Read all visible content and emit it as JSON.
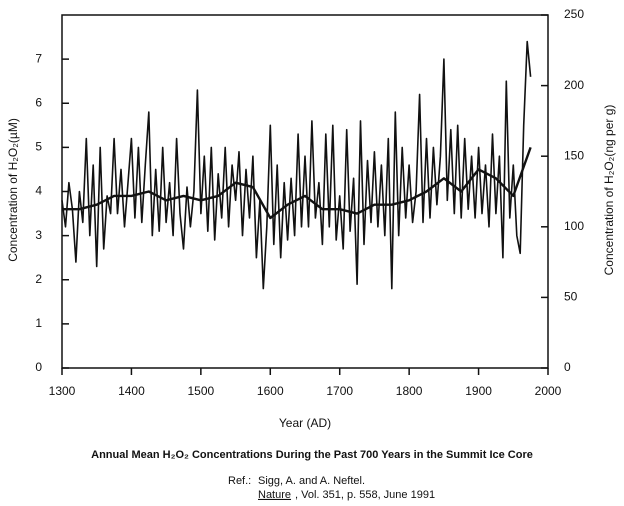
{
  "chart_data": {
    "type": "line",
    "title": "Annual Mean H₂O₂ Concentrations During the Past 700 Years in the Summit Ice Core",
    "ref_label": "Ref.:",
    "ref_line1": "Sigg, A. and A. Neftel.",
    "ref_journal": "Nature",
    "ref_line2": ", Vol. 351, p. 558, June 1991",
    "xlabel": "Year (AD)",
    "ylabel": "Concentration of H₂O₂(µM)",
    "y2label": "Concentration of H₂O₂(ng per g)",
    "xlim": [
      1300,
      2000
    ],
    "xticks": [
      1300,
      1400,
      1500,
      1600,
      1700,
      1800,
      1900,
      2000
    ],
    "ylim": [
      0,
      8
    ],
    "yticks": [
      0,
      1,
      2,
      3,
      4,
      5,
      6,
      7
    ],
    "y2lim": [
      0,
      250
    ],
    "y2ticks": [
      0,
      50,
      100,
      150,
      200,
      250
    ],
    "series": [
      {
        "color": "#111111",
        "width": 1.6,
        "x": [
          1300,
          1305,
          1310,
          1315,
          1320,
          1325,
          1330,
          1335,
          1340,
          1345,
          1350,
          1355,
          1360,
          1365,
          1370,
          1375,
          1380,
          1385,
          1390,
          1395,
          1400,
          1405,
          1410,
          1415,
          1420,
          1425,
          1430,
          1435,
          1440,
          1445,
          1450,
          1455,
          1460,
          1465,
          1470,
          1475,
          1480,
          1485,
          1490,
          1495,
          1500,
          1505,
          1510,
          1515,
          1520,
          1525,
          1530,
          1535,
          1540,
          1545,
          1550,
          1555,
          1560,
          1565,
          1570,
          1575,
          1580,
          1585,
          1590,
          1595,
          1600,
          1605,
          1610,
          1615,
          1620,
          1625,
          1630,
          1635,
          1640,
          1645,
          1650,
          1655,
          1660,
          1665,
          1670,
          1675,
          1680,
          1685,
          1690,
          1695,
          1700,
          1705,
          1710,
          1715,
          1720,
          1725,
          1730,
          1735,
          1740,
          1745,
          1750,
          1755,
          1760,
          1765,
          1770,
          1775,
          1780,
          1785,
          1790,
          1795,
          1800,
          1805,
          1810,
          1815,
          1820,
          1825,
          1830,
          1835,
          1840,
          1845,
          1850,
          1855,
          1860,
          1865,
          1870,
          1875,
          1880,
          1885,
          1890,
          1895,
          1900,
          1905,
          1910,
          1915,
          1920,
          1925,
          1930,
          1935,
          1940,
          1945,
          1950,
          1955,
          1960,
          1965,
          1970,
          1975
        ],
        "values": [
          3.8,
          3.2,
          4.2,
          3.6,
          2.4,
          4.0,
          3.3,
          5.2,
          3.0,
          4.6,
          2.3,
          5.0,
          2.7,
          3.9,
          3.5,
          5.2,
          3.5,
          4.5,
          3.2,
          4.2,
          5.2,
          3.4,
          5.0,
          3.3,
          4.6,
          5.8,
          3.0,
          4.5,
          3.1,
          5.0,
          3.3,
          4.2,
          3.0,
          5.2,
          3.5,
          2.7,
          4.1,
          3.2,
          4.0,
          6.3,
          3.5,
          4.8,
          3.1,
          5.0,
          2.9,
          4.4,
          3.4,
          5.0,
          3.2,
          4.6,
          3.8,
          4.9,
          3.0,
          4.5,
          3.4,
          4.8,
          2.5,
          3.8,
          1.8,
          3.2,
          5.5,
          2.8,
          4.6,
          2.5,
          4.2,
          2.9,
          4.3,
          3.0,
          5.3,
          3.2,
          4.8,
          3.2,
          5.6,
          3.4,
          4.2,
          2.8,
          5.3,
          3.2,
          5.5,
          2.9,
          3.9,
          2.7,
          5.4,
          3.1,
          4.3,
          1.9,
          5.6,
          2.8,
          4.7,
          3.3,
          4.9,
          3.2,
          4.6,
          3.0,
          5.2,
          1.8,
          5.8,
          3.0,
          5.0,
          3.4,
          4.6,
          3.3,
          4.0,
          6.2,
          3.3,
          5.2,
          3.4,
          5.0,
          3.7,
          4.8,
          7.0,
          3.8,
          5.4,
          3.5,
          5.5,
          3.4,
          5.2,
          3.6,
          4.8,
          3.4,
          5.0,
          3.5,
          4.6,
          3.2,
          5.3,
          3.5,
          4.8,
          2.5,
          6.5,
          3.4,
          4.6,
          3.0,
          2.6,
          5.5,
          7.4,
          6.6
        ]
      },
      {
        "color": "#111111",
        "width": 2.4,
        "x": [
          1300,
          1325,
          1350,
          1375,
          1400,
          1425,
          1450,
          1475,
          1500,
          1525,
          1550,
          1575,
          1600,
          1625,
          1650,
          1675,
          1700,
          1725,
          1750,
          1775,
          1800,
          1825,
          1850,
          1875,
          1900,
          1925,
          1950,
          1975
        ],
        "values": [
          3.6,
          3.6,
          3.7,
          3.9,
          3.9,
          4.0,
          3.8,
          3.9,
          3.8,
          3.9,
          4.2,
          4.1,
          3.4,
          3.7,
          3.9,
          3.6,
          3.6,
          3.5,
          3.7,
          3.7,
          3.8,
          4.0,
          4.3,
          4.0,
          4.5,
          4.3,
          3.9,
          5.0
        ]
      }
    ]
  }
}
